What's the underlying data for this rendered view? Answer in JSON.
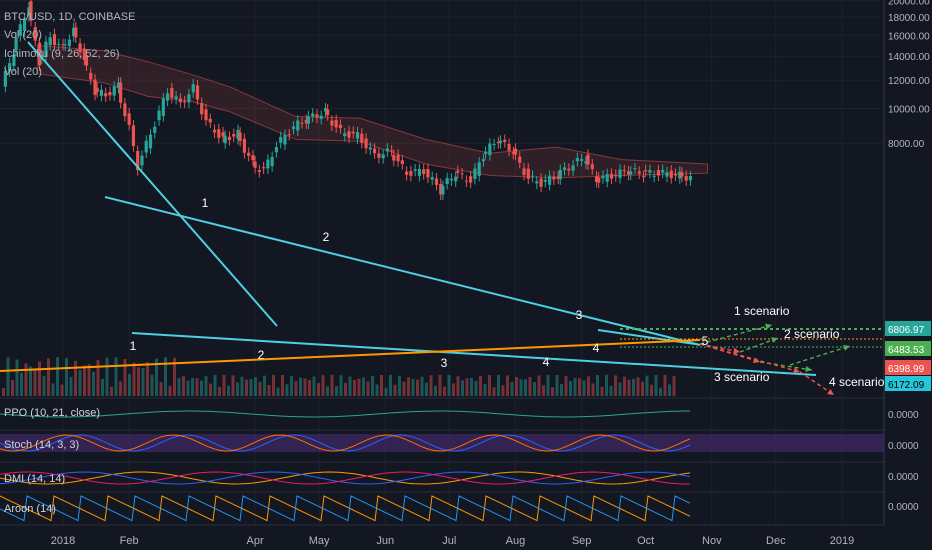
{
  "header": {
    "symbol_line": "BTC/USD, 1D, COINBASE",
    "indicators": [
      "Vol (20)",
      "Ichimoku (9, 26, 52, 26)",
      "Vol (20)"
    ]
  },
  "chart_data": {
    "type": "candlestick",
    "title": "BTC/USD, 1D, COINBASE",
    "y_axis": {
      "scale": "log",
      "ticks": [
        "20000.00",
        "18000.00",
        "16000.00",
        "14000.00",
        "12000.00",
        "10000.00",
        "8000.00"
      ],
      "ylim": [
        5500,
        21500
      ]
    },
    "x_axis": {
      "ticks": [
        "2018",
        "Feb",
        "Apr",
        "May",
        "Jun",
        "Jul",
        "Aug",
        "Sep",
        "Oct",
        "Nov",
        "Dec",
        "2019"
      ]
    },
    "price_series": [
      {
        "date": "2017-12-05",
        "price": 11500
      },
      {
        "date": "2017-12-10",
        "price": 14500
      },
      {
        "date": "2017-12-17",
        "price": 19500
      },
      {
        "date": "2017-12-22",
        "price": 13500
      },
      {
        "date": "2017-12-27",
        "price": 15800
      },
      {
        "date": "2018-01-02",
        "price": 14700
      },
      {
        "date": "2018-01-07",
        "price": 16500
      },
      {
        "date": "2018-01-12",
        "price": 13800
      },
      {
        "date": "2018-01-17",
        "price": 11200
      },
      {
        "date": "2018-01-22",
        "price": 10900
      },
      {
        "date": "2018-01-28",
        "price": 11600
      },
      {
        "date": "2018-02-02",
        "price": 8800
      },
      {
        "date": "2018-02-06",
        "price": 6900
      },
      {
        "date": "2018-02-12",
        "price": 8500
      },
      {
        "date": "2018-02-20",
        "price": 11200
      },
      {
        "date": "2018-02-26",
        "price": 10300
      },
      {
        "date": "2018-03-04",
        "price": 11400
      },
      {
        "date": "2018-03-10",
        "price": 9200
      },
      {
        "date": "2018-03-18",
        "price": 8200
      },
      {
        "date": "2018-03-25",
        "price": 8500
      },
      {
        "date": "2018-04-01",
        "price": 7000
      },
      {
        "date": "2018-04-06",
        "price": 6700
      },
      {
        "date": "2018-04-12",
        "price": 7900
      },
      {
        "date": "2018-04-20",
        "price": 8900
      },
      {
        "date": "2018-04-26",
        "price": 9300
      },
      {
        "date": "2018-05-05",
        "price": 9800
      },
      {
        "date": "2018-05-12",
        "price": 8600
      },
      {
        "date": "2018-05-20",
        "price": 8400
      },
      {
        "date": "2018-05-28",
        "price": 7400
      },
      {
        "date": "2018-06-05",
        "price": 7600
      },
      {
        "date": "2018-06-12",
        "price": 6600
      },
      {
        "date": "2018-06-20",
        "price": 6700
      },
      {
        "date": "2018-06-28",
        "price": 5900
      },
      {
        "date": "2018-07-05",
        "price": 6600
      },
      {
        "date": "2018-07-12",
        "price": 6300
      },
      {
        "date": "2018-07-18",
        "price": 7400
      },
      {
        "date": "2018-07-25",
        "price": 8200
      },
      {
        "date": "2018-08-01",
        "price": 7600
      },
      {
        "date": "2018-08-08",
        "price": 6400
      },
      {
        "date": "2018-08-14",
        "price": 6200
      },
      {
        "date": "2018-08-22",
        "price": 6500
      },
      {
        "date": "2018-08-29",
        "price": 7000
      },
      {
        "date": "2018-09-04",
        "price": 7300
      },
      {
        "date": "2018-09-09",
        "price": 6300
      },
      {
        "date": "2018-09-16",
        "price": 6500
      },
      {
        "date": "2018-09-24",
        "price": 6700
      },
      {
        "date": "2018-10-01",
        "price": 6600
      },
      {
        "date": "2018-10-10",
        "price": 6600
      },
      {
        "date": "2018-10-18",
        "price": 6500
      },
      {
        "date": "2018-10-23",
        "price": 6420
      }
    ],
    "price_tags": [
      {
        "value": "6806.97",
        "color": "#26a69a"
      },
      {
        "value": "6483.53",
        "color": "#4caf50"
      },
      {
        "value": "6398.99",
        "color": "#ef5350"
      },
      {
        "value": "6172.09",
        "color": "#26c6da"
      }
    ],
    "wave_labels": [
      "1",
      "2",
      "1",
      "2",
      "3",
      "4",
      "3",
      "4",
      "5"
    ],
    "scenario_labels": [
      "1 scenario",
      "2 scenario",
      "3 scenario",
      "4 scenario"
    ],
    "sub_panels": [
      {
        "label": "PPO (10, 21, close)",
        "value": "0.0000"
      },
      {
        "label": "Stoch (14, 3, 3)",
        "value": "0.0000"
      },
      {
        "label": "DMI (14, 14)",
        "value": "0.0000"
      },
      {
        "label": "Aroon (14)",
        "value": "0.0000"
      }
    ],
    "colors": {
      "background": "#131722",
      "up": "#26a69a",
      "down": "#ef5350",
      "trendline": "#4dd0e1",
      "support": "#ff9800",
      "stoch_fill": "#4a2c73"
    }
  }
}
